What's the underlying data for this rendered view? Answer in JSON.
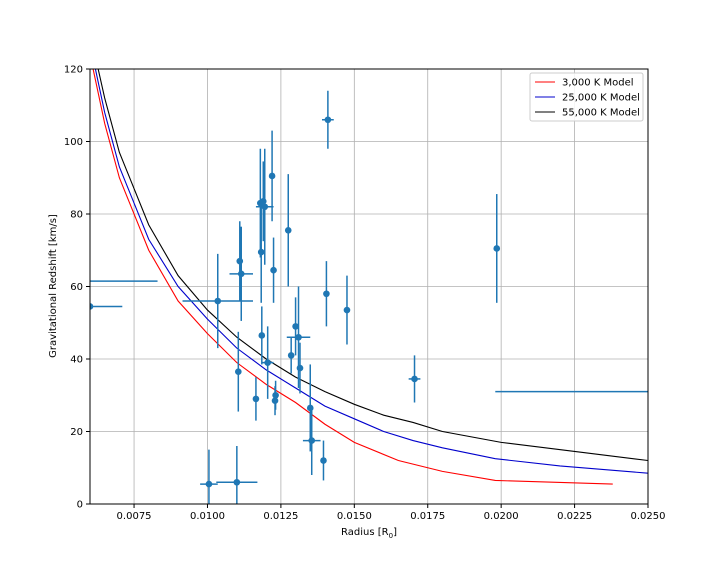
{
  "chart_data": {
    "type": "scatter",
    "xlabel": "Radius [R",
    "xlabel_sub": "0",
    "xlabel_end": "]",
    "ylabel": "Gravitational Redshift [km/s]",
    "xlim": [
      0.006,
      0.025
    ],
    "ylim": [
      0,
      120
    ],
    "xticks": [
      0.0075,
      0.01,
      0.0125,
      0.015,
      0.0175,
      0.02,
      0.0225,
      0.025
    ],
    "xtick_labels": [
      "0.0075",
      "0.0100",
      "0.0125",
      "0.0150",
      "0.0175",
      "0.0200",
      "0.0225",
      "0.0250"
    ],
    "yticks": [
      0,
      20,
      40,
      60,
      80,
      100,
      120
    ],
    "ytick_labels": [
      "0",
      "20",
      "40",
      "60",
      "80",
      "100",
      "120"
    ],
    "grid": true,
    "legend_position": "top-right",
    "models": [
      {
        "name": "3,000 K Model",
        "color": "#ff0000",
        "x": [
          0.006,
          0.0065,
          0.007,
          0.008,
          0.009,
          0.01,
          0.011,
          0.012,
          0.013,
          0.014,
          0.015,
          0.0165,
          0.018,
          0.0198,
          0.0238
        ],
        "y": [
          124,
          105,
          90,
          70,
          56,
          47,
          39,
          33,
          28,
          22,
          17,
          12,
          9,
          6.5,
          5.5
        ]
      },
      {
        "name": "25,000 K Model",
        "color": "#0000cc",
        "x": [
          0.006,
          0.0065,
          0.007,
          0.008,
          0.009,
          0.01,
          0.011,
          0.012,
          0.013,
          0.014,
          0.015,
          0.016,
          0.017,
          0.018,
          0.0198,
          0.022,
          0.025
        ],
        "y": [
          127,
          108,
          93,
          73,
          60,
          51,
          43,
          37,
          32,
          27,
          23.5,
          20,
          17.5,
          15.5,
          12.5,
          10.5,
          8.5
        ]
      },
      {
        "name": "55,000 K Model",
        "color": "#000000",
        "x": [
          0.006,
          0.0065,
          0.007,
          0.008,
          0.009,
          0.01,
          0.011,
          0.012,
          0.013,
          0.014,
          0.015,
          0.016,
          0.017,
          0.018,
          0.02,
          0.0225,
          0.025
        ],
        "y": [
          130,
          112,
          97,
          77,
          63,
          53.5,
          46,
          40,
          35,
          31,
          27.5,
          24.5,
          22.5,
          20,
          17,
          14.5,
          12
        ]
      }
    ],
    "data_series": {
      "color": "#1f77b4",
      "points": [
        {
          "x": 0.005,
          "y": 61.5,
          "xerr": 0.0033,
          "yerr": 0
        },
        {
          "x": 0.006,
          "y": 54.5,
          "xerr": 0.0011,
          "yerr": 0
        },
        {
          "x": 0.01005,
          "y": 5.5,
          "xerr": 0.0003,
          "yerr": 9.5
        },
        {
          "x": 0.01035,
          "y": 56,
          "xerr": 0.0012,
          "yerr": 13
        },
        {
          "x": 0.011,
          "y": 6,
          "xerr": 0.0007,
          "yerr": 10
        },
        {
          "x": 0.01105,
          "y": 36.5,
          "xerr": 0.0001,
          "yerr": 11
        },
        {
          "x": 0.0111,
          "y": 67,
          "xerr": 0.0001,
          "yerr": 11
        },
        {
          "x": 0.01115,
          "y": 63.5,
          "xerr": 0.0004,
          "yerr": 13
        },
        {
          "x": 0.01165,
          "y": 29,
          "xerr": 0.0001,
          "yerr": 6
        },
        {
          "x": 0.0118,
          "y": 83,
          "xerr": 0.0001,
          "yerr": 15
        },
        {
          "x": 0.01183,
          "y": 69.5,
          "xerr": 0.0001,
          "yerr": 14
        },
        {
          "x": 0.01185,
          "y": 46.5,
          "xerr": 0.0001,
          "yerr": 8
        },
        {
          "x": 0.0119,
          "y": 83.5,
          "xerr": 0.0001,
          "yerr": 11
        },
        {
          "x": 0.01195,
          "y": 82,
          "xerr": 0.0003,
          "yerr": 16
        },
        {
          "x": 0.01205,
          "y": 39,
          "xerr": 0.0002,
          "yerr": 10
        },
        {
          "x": 0.0122,
          "y": 90.5,
          "xerr": 0.0001,
          "yerr": 12.5
        },
        {
          "x": 0.01225,
          "y": 64.5,
          "xerr": 0.0001,
          "yerr": 9
        },
        {
          "x": 0.0123,
          "y": 28.5,
          "xerr": 0.0001,
          "yerr": 4
        },
        {
          "x": 0.01232,
          "y": 30,
          "xerr": 0.0001,
          "yerr": 4
        },
        {
          "x": 0.01275,
          "y": 75.5,
          "xerr": 0.0001,
          "yerr": 15.5
        },
        {
          "x": 0.01285,
          "y": 41,
          "xerr": 0.0001,
          "yerr": 5
        },
        {
          "x": 0.013,
          "y": 49,
          "xerr": 0.0001,
          "yerr": 8
        },
        {
          "x": 0.0131,
          "y": 46,
          "xerr": 0.0004,
          "yerr": 14
        },
        {
          "x": 0.01315,
          "y": 37.5,
          "xerr": 0.0001,
          "yerr": 7
        },
        {
          "x": 0.0135,
          "y": 26.5,
          "xerr": 0.0001,
          "yerr": 12
        },
        {
          "x": 0.01355,
          "y": 17.5,
          "xerr": 0.0003,
          "yerr": 9.5
        },
        {
          "x": 0.01395,
          "y": 12,
          "xerr": 0.0001,
          "yerr": 5.5
        },
        {
          "x": 0.01405,
          "y": 58,
          "xerr": 0.0001,
          "yerr": 9
        },
        {
          "x": 0.0141,
          "y": 106,
          "xerr": 0.0002,
          "yerr": 8
        },
        {
          "x": 0.01475,
          "y": 53.5,
          "xerr": 0.0001,
          "yerr": 9.5
        },
        {
          "x": 0.01705,
          "y": 34.5,
          "xerr": 0.0002,
          "yerr": 6.5
        },
        {
          "x": 0.01985,
          "y": 70.5,
          "xerr": 0.0001,
          "yerr": 15
        },
        {
          "x": 0.026,
          "y": 31,
          "xerr": 0.0062,
          "yerr": 0
        }
      ]
    }
  }
}
